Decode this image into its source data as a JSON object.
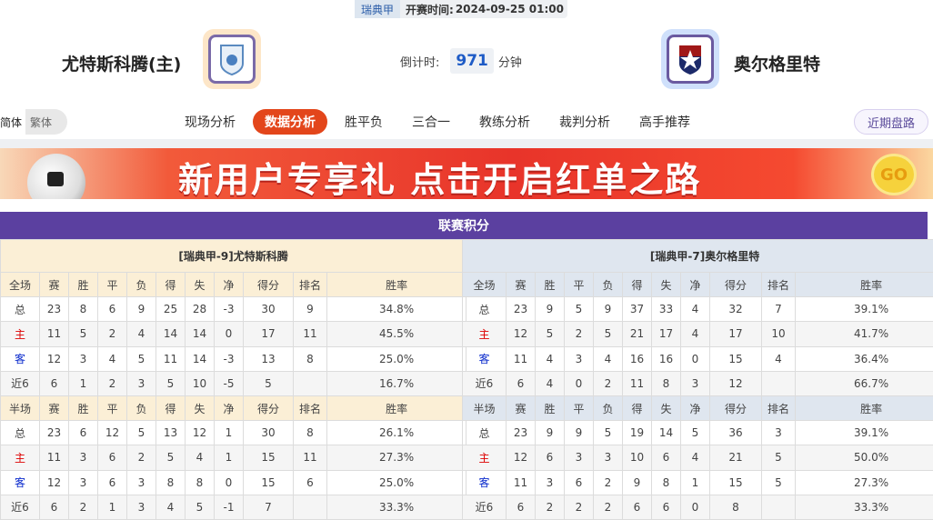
{
  "header": {
    "league": "瑞典甲",
    "kickoff_label": "开赛时间:",
    "kickoff": "2024-09-25 01:00",
    "home_team": "尤特斯科腾(主)",
    "away_team": "奥尔格里特",
    "countdown_label": "倒计时:",
    "countdown_value": "971",
    "countdown_unit": "分钟"
  },
  "lang": {
    "simplified": "简体",
    "traditional": "繁体"
  },
  "nav": {
    "items": [
      "现场分析",
      "数据分析",
      "胜平负",
      "三合一",
      "教练分析",
      "裁判分析",
      "高手推荐"
    ],
    "active": 1,
    "recent": "近期盘路"
  },
  "banner": {
    "text": "新用户专享礼  点击开启红单之路",
    "go": "GO"
  },
  "standings": {
    "title": "联赛积分",
    "columns_full": [
      "全场",
      "赛",
      "胜",
      "平",
      "负",
      "得",
      "失",
      "净",
      "得分",
      "排名",
      "胜率"
    ],
    "columns_half": [
      "半场",
      "赛",
      "胜",
      "平",
      "负",
      "得",
      "失",
      "净",
      "得分",
      "排名",
      "胜率"
    ],
    "teams": [
      {
        "title": "[瑞典甲-9]尤特斯科腾",
        "full": [
          [
            "总",
            "23",
            "8",
            "6",
            "9",
            "25",
            "28",
            "-3",
            "30",
            "9",
            "34.8%"
          ],
          [
            "主",
            "11",
            "5",
            "2",
            "4",
            "14",
            "14",
            "0",
            "17",
            "11",
            "45.5%"
          ],
          [
            "客",
            "12",
            "3",
            "4",
            "5",
            "11",
            "14",
            "-3",
            "13",
            "8",
            "25.0%"
          ],
          [
            "近6",
            "6",
            "1",
            "2",
            "3",
            "5",
            "10",
            "-5",
            "5",
            "",
            "16.7%"
          ]
        ],
        "half": [
          [
            "总",
            "23",
            "6",
            "12",
            "5",
            "13",
            "12",
            "1",
            "30",
            "8",
            "26.1%"
          ],
          [
            "主",
            "11",
            "3",
            "6",
            "2",
            "5",
            "4",
            "1",
            "15",
            "11",
            "27.3%"
          ],
          [
            "客",
            "12",
            "3",
            "6",
            "3",
            "8",
            "8",
            "0",
            "15",
            "6",
            "25.0%"
          ],
          [
            "近6",
            "6",
            "2",
            "1",
            "3",
            "4",
            "5",
            "-1",
            "7",
            "",
            "33.3%"
          ]
        ]
      },
      {
        "title": "[瑞典甲-7]奥尔格里特",
        "full": [
          [
            "总",
            "23",
            "9",
            "5",
            "9",
            "37",
            "33",
            "4",
            "32",
            "7",
            "39.1%"
          ],
          [
            "主",
            "12",
            "5",
            "2",
            "5",
            "21",
            "17",
            "4",
            "17",
            "10",
            "41.7%"
          ],
          [
            "客",
            "11",
            "4",
            "3",
            "4",
            "16",
            "16",
            "0",
            "15",
            "4",
            "36.4%"
          ],
          [
            "近6",
            "6",
            "4",
            "0",
            "2",
            "11",
            "8",
            "3",
            "12",
            "",
            "66.7%"
          ]
        ],
        "half": [
          [
            "总",
            "23",
            "9",
            "9",
            "5",
            "19",
            "14",
            "5",
            "36",
            "3",
            "39.1%"
          ],
          [
            "主",
            "12",
            "6",
            "3",
            "3",
            "10",
            "6",
            "4",
            "21",
            "5",
            "50.0%"
          ],
          [
            "客",
            "11",
            "3",
            "6",
            "2",
            "9",
            "8",
            "1",
            "15",
            "5",
            "27.3%"
          ],
          [
            "近6",
            "6",
            "2",
            "2",
            "2",
            "6",
            "6",
            "0",
            "8",
            "",
            "33.3%"
          ]
        ]
      }
    ]
  },
  "colors": {
    "accent": "#e3461b",
    "section": "#5b40a0",
    "home": "#dd0000",
    "away": "#0a2acc"
  }
}
